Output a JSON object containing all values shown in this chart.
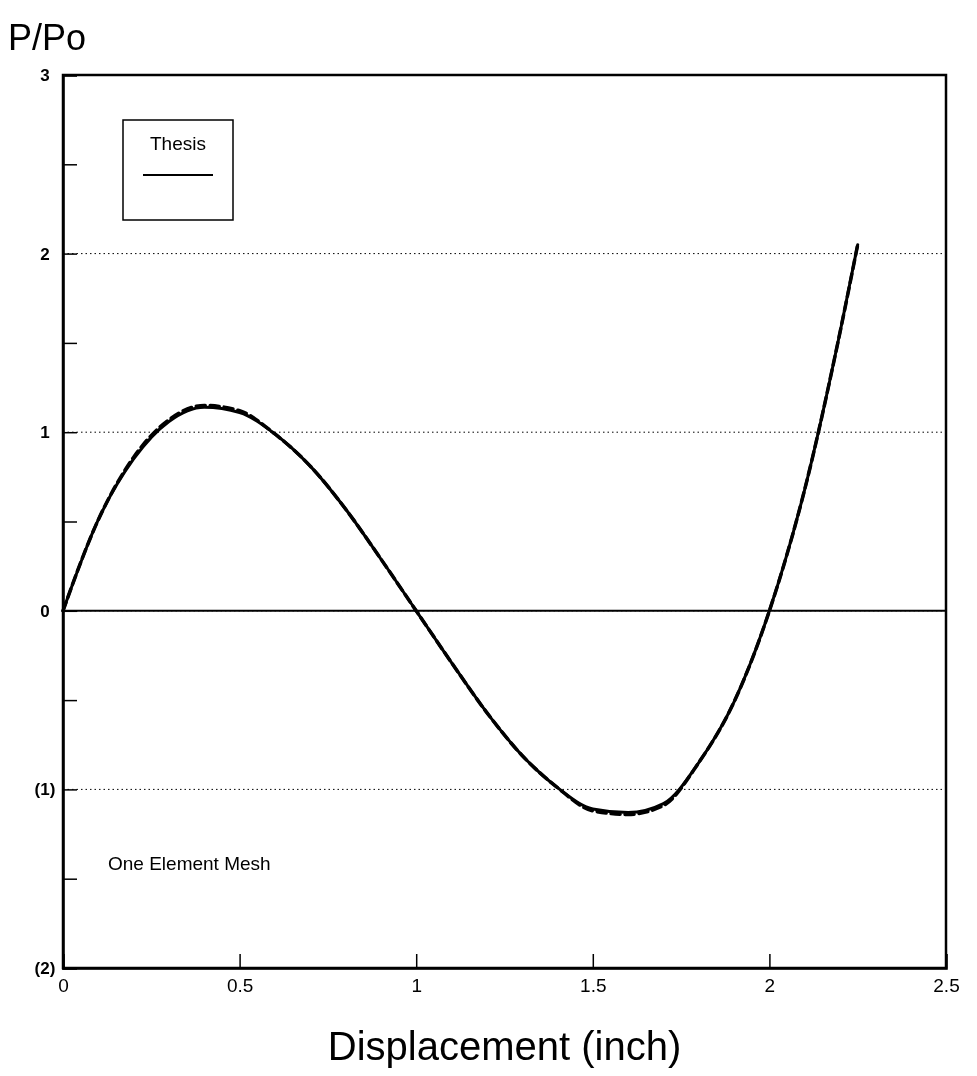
{
  "chart_data": {
    "type": "line",
    "xlabel": "Displacement (inch)",
    "ylabel": "P/Po",
    "x": [
      0,
      0.1,
      0.2,
      0.3,
      0.4,
      0.5,
      0.6,
      0.7,
      0.8,
      0.9,
      1.0,
      1.1,
      1.2,
      1.3,
      1.4,
      1.5,
      1.6,
      1.7,
      1.8,
      1.9,
      2.0,
      2.1,
      2.2,
      2.25
    ],
    "series": [
      {
        "name": "Thesis",
        "color": "#000000",
        "line_style": "solid",
        "values": [
          0,
          0.51,
          0.85,
          1.06,
          1.14,
          1.11,
          0.99,
          0.81,
          0.57,
          0.29,
          0,
          -0.29,
          -0.57,
          -0.81,
          -0.99,
          -1.11,
          -1.13,
          -1.08,
          -0.85,
          -0.51,
          0,
          0.68,
          1.56,
          2.05
        ]
      },
      {
        "color": "#000000",
        "line_style": "dashed",
        "values": [
          0,
          0.51,
          0.86,
          1.07,
          1.15,
          1.12,
          0.99,
          0.81,
          0.57,
          0.29,
          0,
          -0.29,
          -0.57,
          -0.81,
          -0.99,
          -1.12,
          -1.14,
          -1.09,
          -0.85,
          -0.51,
          0,
          0.68,
          1.56,
          2.05
        ]
      }
    ],
    "xlim": [
      0,
      2.5
    ],
    "xticks": [
      0,
      0.5,
      1,
      1.5,
      2,
      2.5
    ],
    "ylim": [
      -2,
      3
    ],
    "yticks": [
      {
        "value": -2,
        "label": "(2)"
      },
      {
        "value": -1.5,
        "label": null
      },
      {
        "value": -1,
        "label": "(1)"
      },
      {
        "value": -0.5,
        "label": null
      },
      0,
      {
        "value": 0.5,
        "label": null
      },
      1,
      {
        "value": 1.5,
        "label": null
      },
      2,
      {
        "value": 2.5,
        "label": null
      },
      3
    ],
    "grid": "y",
    "legend": "top left",
    "ref_lines": [
      {
        "axis": "y",
        "value": 0
      }
    ],
    "annotations": [
      "One Element Mesh"
    ]
  }
}
